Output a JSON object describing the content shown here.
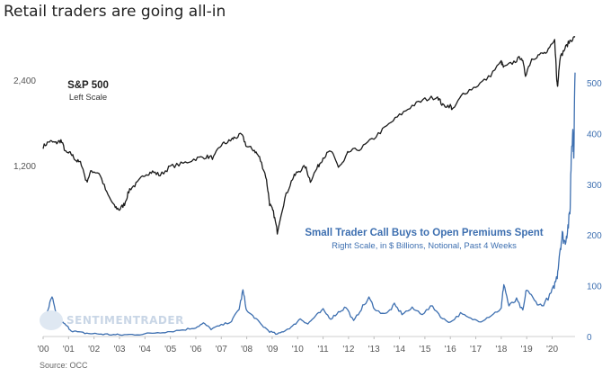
{
  "title": "Retail traders are going all-in",
  "source": "Source: OCC",
  "watermark": "SENTIMENTRADER",
  "colors": {
    "sp500": "#1a1a1a",
    "calls": "#3d6fb0"
  },
  "chart_data": {
    "type": "line",
    "title": "Retail traders are going all-in",
    "x_ticks": [
      "'00",
      "'01",
      "'02",
      "'03",
      "'04",
      "'05",
      "'06",
      "'07",
      "'08",
      "'09",
      "'10",
      "'11",
      "'12",
      "'13",
      "'14",
      "'15",
      "'16",
      "'17",
      "'18",
      "'19",
      "'20"
    ],
    "xlim": [
      2000.0,
      2020.9
    ],
    "left_axis": {
      "scale": "log",
      "ticks": [
        1200,
        2400
      ],
      "tick_labels": [
        "1,200",
        "2,400"
      ]
    },
    "right_axis": {
      "scale": "linear",
      "ylim": [
        0,
        520
      ],
      "ticks": [
        0,
        100,
        200,
        300,
        400,
        500
      ],
      "tick_labels": [
        "0",
        "100",
        "200",
        "300",
        "400",
        "500"
      ]
    },
    "grid": false,
    "annotations": [
      {
        "id": "sp",
        "title": "S&P 500",
        "subtitle": "Left Scale"
      },
      {
        "id": "calls",
        "title": "Small Trader Call Buys to Open Premiums Spent",
        "subtitle": "Right Scale, in $ Billions, Notional, Past 4 Weeks"
      }
    ],
    "series": [
      {
        "name": "S&P 500",
        "axis": "left",
        "x": [
          2000.0,
          2000.25,
          2000.5,
          2000.7,
          2000.9,
          2001.1,
          2001.3,
          2001.5,
          2001.7,
          2001.9,
          2002.2,
          2002.5,
          2002.8,
          2003.0,
          2003.2,
          2003.4,
          2003.7,
          2004.0,
          2004.3,
          2004.6,
          2005.0,
          2005.5,
          2006.0,
          2006.4,
          2006.7,
          2007.0,
          2007.3,
          2007.5,
          2007.8,
          2008.0,
          2008.3,
          2008.5,
          2008.75,
          2008.9,
          2009.05,
          2009.2,
          2009.5,
          2009.8,
          2010.0,
          2010.3,
          2010.5,
          2010.8,
          2011.0,
          2011.3,
          2011.6,
          2011.8,
          2012.0,
          2012.5,
          2013.0,
          2013.5,
          2014.0,
          2014.5,
          2015.0,
          2015.5,
          2015.7,
          2016.0,
          2016.1,
          2016.5,
          2017.0,
          2017.5,
          2018.0,
          2018.1,
          2018.5,
          2018.8,
          2018.95,
          2019.2,
          2019.5,
          2019.8,
          2020.1,
          2020.18,
          2020.22,
          2020.3,
          2020.5,
          2020.7,
          2020.9
        ],
        "y": [
          1400,
          1460,
          1440,
          1470,
          1330,
          1320,
          1250,
          1220,
          1050,
          1150,
          1130,
          960,
          860,
          840,
          880,
          990,
          1040,
          1120,
          1140,
          1110,
          1190,
          1220,
          1270,
          1290,
          1280,
          1420,
          1460,
          1500,
          1540,
          1400,
          1360,
          1280,
          1100,
          880,
          820,
          700,
          920,
          1080,
          1140,
          1190,
          1060,
          1190,
          1280,
          1350,
          1190,
          1230,
          1340,
          1380,
          1500,
          1650,
          1800,
          1950,
          2050,
          2100,
          1950,
          1950,
          1880,
          2150,
          2280,
          2450,
          2780,
          2650,
          2780,
          2900,
          2500,
          2850,
          2950,
          3000,
          3300,
          2400,
          2300,
          2850,
          3100,
          3300,
          3400
        ]
      },
      {
        "name": "Small Trader Call Buys to Open Premiums Spent",
        "axis": "right",
        "x": [
          2000.0,
          2000.2,
          2000.35,
          2000.5,
          2000.7,
          2000.9,
          2001.1,
          2001.4,
          2001.8,
          2002.2,
          2002.6,
          2003.0,
          2003.5,
          2004.0,
          2004.5,
          2005.0,
          2005.6,
          2006.0,
          2006.3,
          2006.6,
          2007.0,
          2007.4,
          2007.7,
          2007.85,
          2008.0,
          2008.3,
          2008.6,
          2008.9,
          2009.2,
          2009.5,
          2009.8,
          2010.1,
          2010.4,
          2010.7,
          2011.0,
          2011.3,
          2011.6,
          2011.9,
          2012.2,
          2012.5,
          2012.8,
          2013.1,
          2013.5,
          2013.8,
          2014.1,
          2014.5,
          2014.9,
          2015.3,
          2015.7,
          2016.0,
          2016.4,
          2016.8,
          2017.2,
          2017.6,
          2018.0,
          2018.1,
          2018.3,
          2018.6,
          2018.85,
          2019.0,
          2019.3,
          2019.6,
          2019.9,
          2020.05,
          2020.2,
          2020.3,
          2020.4,
          2020.5,
          2020.6,
          2020.7,
          2020.75,
          2020.8,
          2020.85,
          2020.9
        ],
        "y": [
          25,
          55,
          78,
          45,
          30,
          22,
          12,
          8,
          6,
          5,
          4,
          3,
          4,
          5,
          8,
          10,
          14,
          18,
          26,
          15,
          22,
          30,
          55,
          90,
          50,
          38,
          22,
          10,
          4,
          12,
          20,
          35,
          25,
          40,
          52,
          35,
          48,
          58,
          30,
          55,
          75,
          50,
          45,
          62,
          45,
          55,
          45,
          60,
          35,
          28,
          45,
          35,
          30,
          42,
          55,
          105,
          60,
          72,
          50,
          95,
          70,
          60,
          80,
          95,
          120,
          170,
          200,
          185,
          210,
          240,
          360,
          410,
          370,
          520
        ]
      }
    ]
  }
}
